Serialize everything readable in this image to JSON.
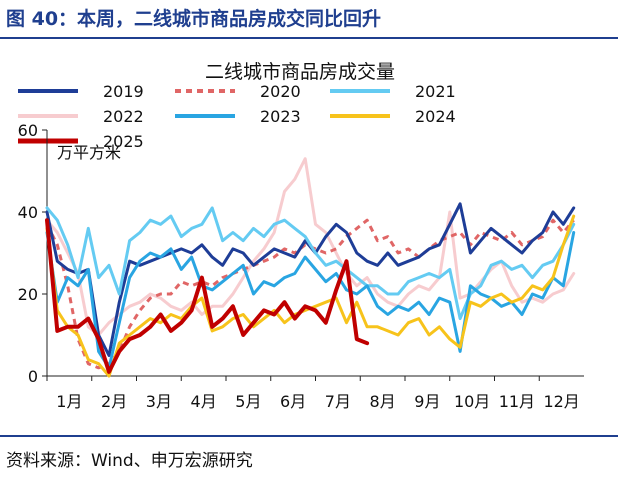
{
  "figure": {
    "title": "图 40：本周，二线城市商品房成交同比回升",
    "source": "资料来源：Wind、申万宏源研究"
  },
  "chart_data": {
    "type": "line",
    "title": "二线城市商品房成交量",
    "ylabel": "万平方米",
    "xlabel": "",
    "ylim": [
      0,
      60
    ],
    "yticks": [
      0,
      20,
      40,
      60
    ],
    "x_ticks": [
      "1月",
      "2月",
      "3月",
      "4月",
      "5月",
      "6月",
      "7月",
      "8月",
      "9月",
      "10月",
      "11月",
      "12月"
    ],
    "x_unit": "week of year",
    "xlim": [
      1,
      53
    ],
    "grid": false,
    "legend": "top, 3 columns",
    "series": [
      {
        "name": "2019",
        "color": "#1e3d97",
        "dash": "solid",
        "width": 3,
        "x": [
          1,
          2,
          3,
          4,
          5,
          6,
          7,
          8,
          9,
          10,
          11,
          12,
          13,
          14,
          15,
          16,
          17,
          18,
          19,
          20,
          21,
          22,
          23,
          24,
          25,
          26,
          27,
          28,
          29,
          30,
          31,
          32,
          33,
          34,
          35,
          36,
          37,
          38,
          39,
          40,
          41,
          42,
          43,
          44,
          45,
          46,
          47,
          48,
          49,
          50,
          51,
          52
        ],
        "values": [
          40,
          28,
          26,
          25,
          26,
          10,
          5,
          18,
          28,
          27,
          28,
          29,
          30,
          31,
          30,
          32,
          29,
          27,
          31,
          30,
          27,
          29,
          31,
          30,
          29,
          33,
          30,
          34,
          37,
          35,
          30,
          28,
          27,
          30,
          27,
          28,
          29,
          31,
          32,
          37,
          42,
          30,
          33,
          36,
          34,
          32,
          30,
          33,
          35,
          40,
          37,
          41
        ]
      },
      {
        "name": "2020",
        "color": "#e06666",
        "dash": "6,5",
        "width": 3,
        "x": [
          1,
          2,
          3,
          4,
          5,
          6,
          7,
          8,
          9,
          10,
          11,
          12,
          13,
          14,
          15,
          16,
          17,
          18,
          19,
          20,
          21,
          22,
          23,
          24,
          25,
          26,
          27,
          28,
          29,
          30,
          31,
          32,
          33,
          34,
          35,
          36,
          37,
          38,
          39,
          40,
          41,
          42,
          43,
          44,
          45,
          46,
          47,
          48,
          49,
          50,
          51,
          52
        ],
        "values": [
          37,
          32,
          22,
          9,
          3,
          2,
          3,
          6,
          12,
          16,
          19,
          20,
          20,
          23,
          22,
          23,
          22,
          24,
          25,
          26,
          27,
          28,
          29,
          31,
          30,
          32,
          31,
          30,
          31,
          34,
          36,
          38,
          33,
          34,
          30,
          31,
          29,
          31,
          33,
          34,
          35,
          32,
          35,
          34,
          33,
          35,
          32,
          33,
          34,
          38,
          35,
          38
        ]
      },
      {
        "name": "2021",
        "color": "#64cbf2",
        "dash": "solid",
        "width": 3,
        "x": [
          1,
          2,
          3,
          4,
          5,
          6,
          7,
          8,
          9,
          10,
          11,
          12,
          13,
          14,
          15,
          16,
          17,
          18,
          19,
          20,
          21,
          22,
          23,
          24,
          25,
          26,
          27,
          28,
          29,
          30,
          31,
          32,
          33,
          34,
          35,
          36,
          37,
          38,
          39,
          40,
          41,
          42,
          43,
          44,
          45,
          46,
          47,
          48,
          49,
          50,
          51,
          52
        ],
        "values": [
          41,
          38,
          32,
          24,
          36,
          24,
          27,
          20,
          33,
          35,
          38,
          37,
          39,
          34,
          36,
          37,
          41,
          33,
          35,
          33,
          36,
          34,
          37,
          38,
          36,
          34,
          30,
          27,
          28,
          26,
          24,
          22,
          22,
          20,
          20,
          23,
          24,
          25,
          24,
          26,
          14,
          20,
          22,
          27,
          28,
          26,
          27,
          24,
          27,
          28,
          32,
          37
        ]
      },
      {
        "name": "2022",
        "color": "#f7cccf",
        "dash": "solid",
        "width": 3,
        "x": [
          1,
          2,
          3,
          4,
          5,
          6,
          7,
          8,
          9,
          10,
          11,
          12,
          13,
          14,
          15,
          16,
          17,
          18,
          19,
          20,
          21,
          22,
          23,
          24,
          25,
          26,
          27,
          28,
          29,
          30,
          31,
          32,
          33,
          34,
          35,
          36,
          37,
          38,
          39,
          40,
          41,
          42,
          43,
          44,
          45,
          46,
          47,
          48,
          49,
          50,
          51,
          52
        ],
        "values": [
          38,
          35,
          30,
          25,
          12,
          10,
          13,
          15,
          17,
          18,
          20,
          19,
          17,
          16,
          18,
          15,
          17,
          17,
          20,
          24,
          28,
          31,
          35,
          45,
          48,
          53,
          37,
          35,
          30,
          25,
          22,
          24,
          20,
          18,
          17,
          20,
          22,
          21,
          24,
          40,
          19,
          20,
          23,
          26,
          28,
          22,
          18,
          19,
          18,
          20,
          21,
          25
        ]
      },
      {
        "name": "2023",
        "color": "#29a5e2",
        "dash": "solid",
        "width": 3,
        "x": [
          1,
          2,
          3,
          4,
          5,
          6,
          7,
          8,
          9,
          10,
          11,
          12,
          13,
          14,
          15,
          16,
          17,
          18,
          19,
          20,
          21,
          22,
          23,
          24,
          25,
          26,
          27,
          28,
          29,
          30,
          31,
          32,
          33,
          34,
          35,
          36,
          37,
          38,
          39,
          40,
          41,
          42,
          43,
          44,
          45,
          46,
          47,
          48,
          49,
          50,
          51,
          52
        ],
        "values": [
          35,
          18,
          24,
          22,
          26,
          6,
          2,
          13,
          24,
          28,
          30,
          29,
          31,
          26,
          29,
          22,
          21,
          23,
          25,
          27,
          20,
          23,
          22,
          24,
          25,
          29,
          26,
          23,
          25,
          21,
          20,
          22,
          17,
          15,
          17,
          16,
          18,
          15,
          19,
          18,
          6,
          22,
          20,
          19,
          17,
          18,
          15,
          20,
          19,
          24,
          22,
          35
        ]
      },
      {
        "name": "2024",
        "color": "#f7c31b",
        "dash": "solid",
        "width": 3,
        "x": [
          1,
          2,
          3,
          4,
          5,
          6,
          7,
          8,
          9,
          10,
          11,
          12,
          13,
          14,
          15,
          16,
          17,
          18,
          19,
          20,
          21,
          22,
          23,
          24,
          25,
          26,
          27,
          28,
          29,
          30,
          31,
          32,
          33,
          34,
          35,
          36,
          37,
          38,
          39,
          40,
          41,
          42,
          43,
          44,
          45,
          46,
          47,
          48,
          49,
          50,
          51,
          52
        ],
        "values": [
          36,
          16,
          12,
          10,
          4,
          3,
          0,
          8,
          10,
          12,
          14,
          13,
          15,
          14,
          17,
          19,
          11,
          12,
          14,
          15,
          12,
          14,
          16,
          13,
          15,
          16,
          17,
          18,
          19,
          13,
          18,
          12,
          12,
          11,
          10,
          13,
          14,
          10,
          12,
          9,
          7,
          18,
          17,
          19,
          20,
          18,
          19,
          22,
          21,
          24,
          32,
          39
        ]
      },
      {
        "name": "2025",
        "color": "#c00000",
        "dash": "solid",
        "width": 4,
        "x": [
          1,
          2,
          3,
          4,
          5,
          6,
          7,
          8,
          9,
          10,
          11,
          12,
          13,
          14,
          15,
          16,
          17,
          18,
          19,
          20,
          21,
          22,
          23,
          24,
          25,
          26,
          27,
          28,
          29,
          30,
          31,
          32
        ],
        "values": [
          38,
          11,
          12,
          12,
          14,
          9,
          1,
          6,
          9,
          10,
          12,
          15,
          11,
          13,
          16,
          24,
          12,
          14,
          17,
          10,
          13,
          16,
          15,
          18,
          14,
          17,
          16,
          13,
          21,
          28,
          9,
          8
        ]
      }
    ]
  }
}
